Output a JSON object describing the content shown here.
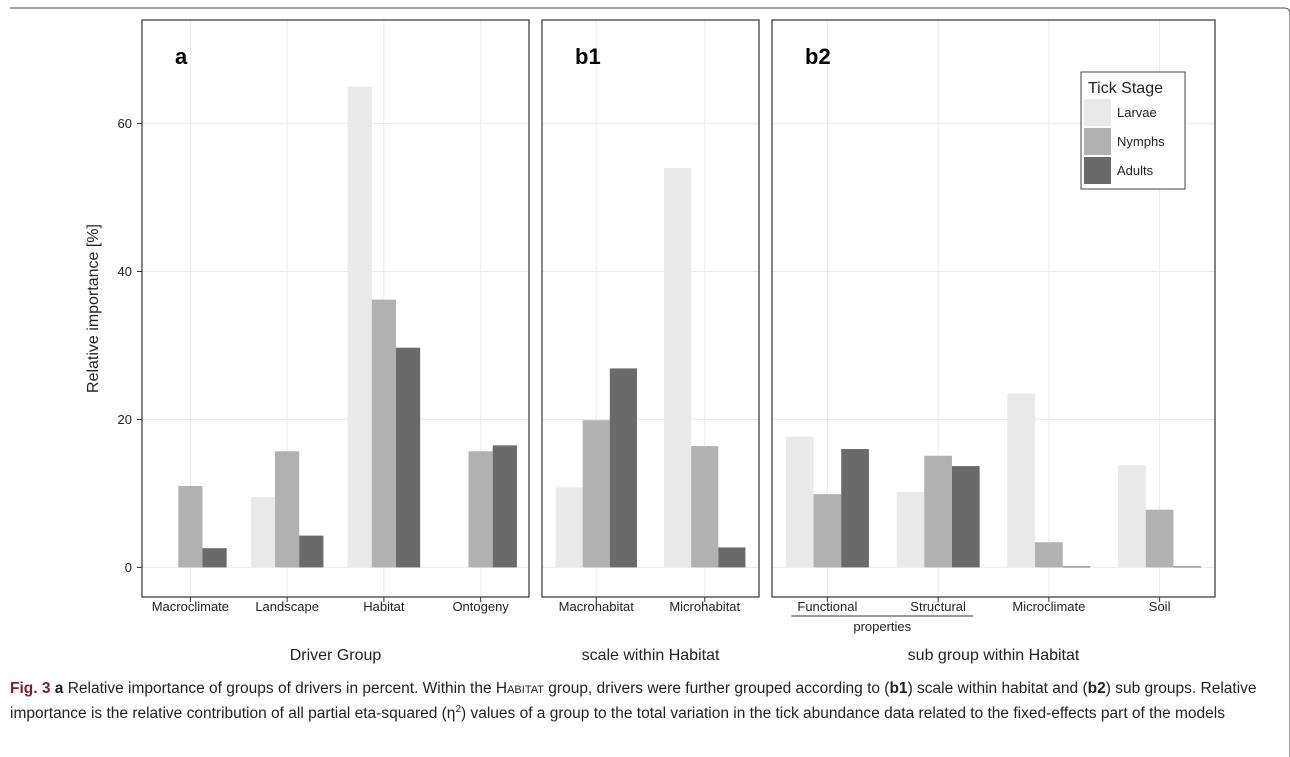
{
  "chart_data": {
    "type": "bar",
    "ylabel": "Relative importance [%]",
    "ylim": [
      -4,
      74
    ],
    "yticks": [
      0,
      20,
      40,
      60
    ],
    "grid": true,
    "legend": {
      "title": "Tick Stage",
      "placement": "top-right",
      "entries": [
        "Larvae",
        "Nymphs",
        "Adults"
      ],
      "colors": [
        "#e9e9e9",
        "#b1b1b2",
        "#6a6a6a"
      ]
    },
    "panels": [
      {
        "panel_label": "a",
        "xlabel": "Driver Group",
        "categories": [
          "Macroclimate",
          "Landscape",
          "Habitat",
          "Ontogeny"
        ],
        "series": [
          {
            "name": "Larvae",
            "values": [
              0,
              9.5,
              65.0,
              0
            ]
          },
          {
            "name": "Nymphs",
            "values": [
              11.0,
              15.7,
              36.2,
              15.7
            ]
          },
          {
            "name": "Adults",
            "values": [
              2.6,
              4.3,
              29.7,
              16.5
            ]
          }
        ]
      },
      {
        "panel_label": "b1",
        "xlabel": "scale within Habitat",
        "categories": [
          "Macrohabitat",
          "Microhabitat"
        ],
        "series": [
          {
            "name": "Larvae",
            "values": [
              10.8,
              54.0
            ]
          },
          {
            "name": "Nymphs",
            "values": [
              19.9,
              16.4
            ]
          },
          {
            "name": "Adults",
            "values": [
              26.9,
              2.7
            ]
          }
        ]
      },
      {
        "panel_label": "b2",
        "xlabel": "sub group within Habitat",
        "categories": [
          "Functional",
          "Structural",
          "Microclimate",
          "Soil"
        ],
        "category_bracket": {
          "label": "properties",
          "spans": [
            "Functional",
            "Structural"
          ]
        },
        "series": [
          {
            "name": "Larvae",
            "values": [
              17.7,
              10.2,
              23.5,
              13.8
            ]
          },
          {
            "name": "Nymphs",
            "values": [
              9.9,
              15.1,
              3.4,
              7.8
            ]
          },
          {
            "name": "Adults",
            "values": [
              16.0,
              13.7,
              0.1,
              0.1
            ]
          }
        ]
      }
    ]
  },
  "caption": {
    "fig_label": "Fig. 3",
    "panel_a": "a",
    "text1": " Relative importance of groups of drivers in percent. Within the ",
    "habitat_word": "Habitat",
    "text2": " group, drivers were further grouped according to (",
    "panel_b1": "b1",
    "text3": ") scale within habitat and (",
    "panel_b2": "b2",
    "text4": ") sub groups. Relative importance is the relative contribution of all partial eta-squared (η",
    "superscript": "2",
    "text5": ") values of a group to the total variation in the tick abundance data related to the fixed-effects part of the models"
  }
}
